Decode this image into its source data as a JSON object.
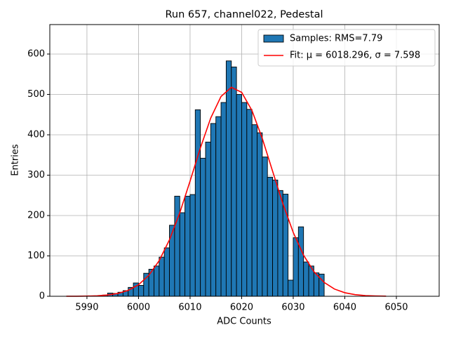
{
  "chart_data": {
    "type": "histogram",
    "title": "Run 657, channel022, Pedestal",
    "xlabel": "ADC Counts",
    "ylabel": "Entries",
    "xlim": [
      5982.8,
      6058.3
    ],
    "ylim": [
      0,
      673
    ],
    "xticks": [
      5990,
      6000,
      6010,
      6020,
      6030,
      6040,
      6050
    ],
    "yticks": [
      0,
      100,
      200,
      300,
      400,
      500,
      600
    ],
    "grid": true,
    "legend": "upper right",
    "bins": [
      5993,
      5994,
      5995,
      5996,
      5997,
      5998,
      5999,
      6000,
      6001,
      6002,
      6003,
      6004,
      6005,
      6006,
      6007,
      6008,
      6009,
      6010,
      6011,
      6012,
      6013,
      6014,
      6015,
      6016,
      6017,
      6018,
      6019,
      6020,
      6021,
      6022,
      6023,
      6024,
      6025,
      6026,
      6027,
      6028,
      6029,
      6030,
      6031,
      6032,
      6033,
      6034,
      6035,
      6036
    ],
    "series": [
      {
        "name": "Samples: RMS=7.79",
        "type": "histogram",
        "color": "#1f77b4",
        "values": [
          3,
          8,
          7,
          10,
          14,
          22,
          33,
          27,
          57,
          67,
          75,
          97,
          120,
          176,
          248,
          207,
          248,
          252,
          462,
          342,
          382,
          428,
          445,
          480,
          583,
          568,
          500,
          480,
          463,
          425,
          405,
          345,
          295,
          288,
          262,
          253,
          40,
          145,
          172,
          85,
          75,
          58,
          55
        ]
      },
      {
        "name": "Fit: μ = 6018.296, σ = 7.598",
        "type": "line",
        "color": "#ff0000",
        "x": [
          5986,
          5988,
          5990,
          5992,
          5994,
          5996,
          5998,
          6000,
          6002,
          6004,
          6006,
          6008,
          6010,
          6012,
          6014,
          6016,
          6018,
          6020,
          6022,
          6024,
          6026,
          6028,
          6030,
          6032,
          6034,
          6036,
          6038,
          6040,
          6042,
          6044,
          6046,
          6048
        ],
        "values": [
          0.06,
          0.18,
          0.5,
          1.3,
          3.1,
          7.0,
          14.6,
          28.5,
          51.9,
          88.2,
          139.8,
          206.8,
          285.5,
          367.6,
          441.5,
          494.9,
          517.6,
          505.2,
          460.0,
          391.0,
          309.8,
          229.1,
          158.2,
          101.8,
          61.2,
          34.3,
          17.9,
          8.8,
          4.0,
          1.7,
          0.7,
          0.25
        ]
      }
    ]
  }
}
